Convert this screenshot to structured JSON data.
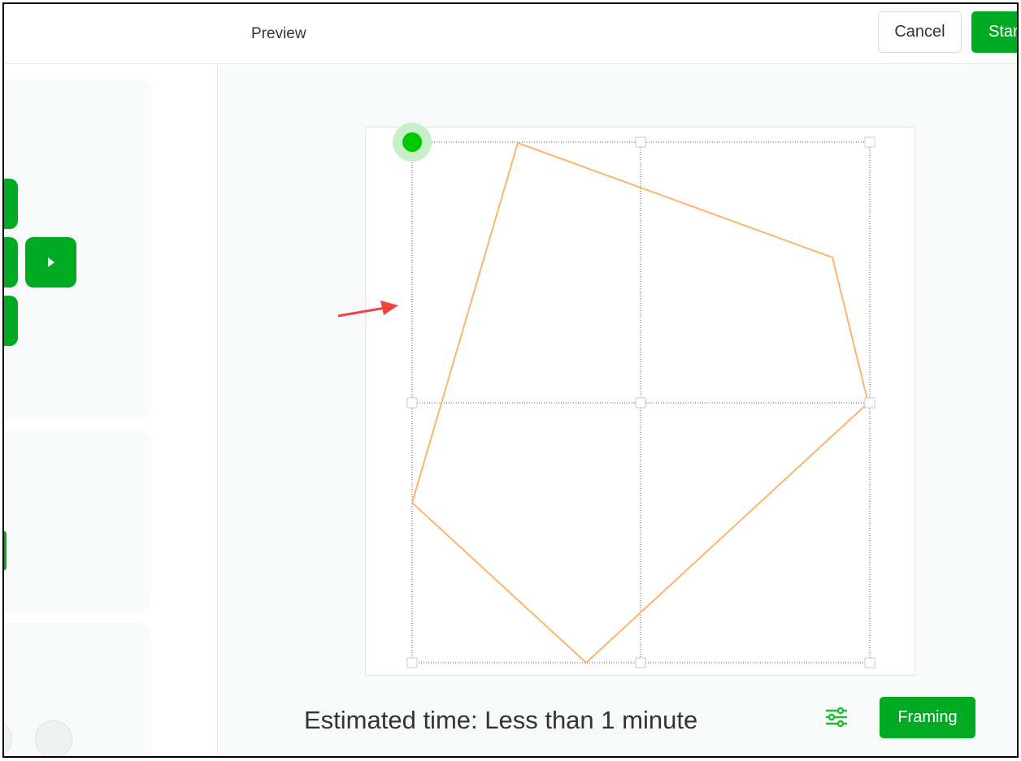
{
  "header": {
    "title": "Preview",
    "cancel_label": "Cancel",
    "start_label": "Start"
  },
  "footer": {
    "estimated_time": "Estimated time: Less than 1 minute",
    "framing_label": "Framing",
    "settings_icon": "sliders-icon"
  },
  "colors": {
    "accent": "#00aa23",
    "path": "#ffb46e",
    "arrow": "#f04040",
    "origin": "#00c800"
  }
}
